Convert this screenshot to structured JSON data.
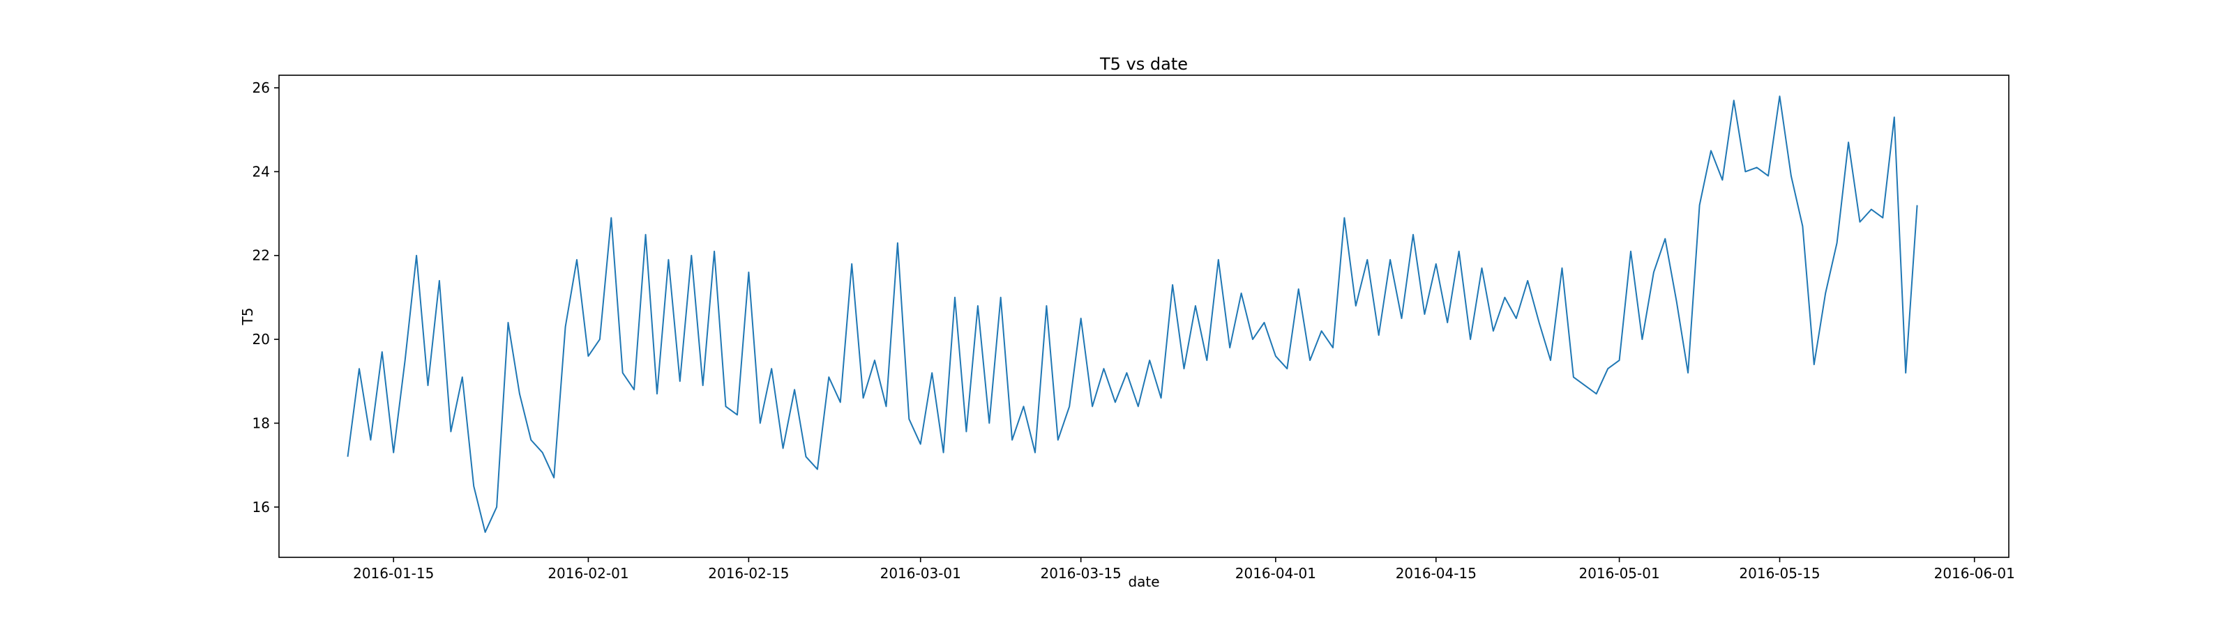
{
  "chart_data": {
    "type": "line",
    "title": "T5 vs date",
    "x_label": "date",
    "y_label": "T5",
    "color": "#1f77b4",
    "grid": false,
    "x": [
      "2016-01-11",
      "2016-01-12",
      "2016-01-13",
      "2016-01-14",
      "2016-01-15",
      "2016-01-16",
      "2016-01-17",
      "2016-01-18",
      "2016-01-19",
      "2016-01-20",
      "2016-01-21",
      "2016-01-22",
      "2016-01-23",
      "2016-01-24",
      "2016-01-25",
      "2016-01-26",
      "2016-01-27",
      "2016-01-28",
      "2016-01-29",
      "2016-01-30",
      "2016-01-31",
      "2016-02-01",
      "2016-02-02",
      "2016-02-03",
      "2016-02-04",
      "2016-02-05",
      "2016-02-06",
      "2016-02-07",
      "2016-02-08",
      "2016-02-09",
      "2016-02-10",
      "2016-02-11",
      "2016-02-12",
      "2016-02-13",
      "2016-02-14",
      "2016-02-15",
      "2016-02-16",
      "2016-02-17",
      "2016-02-18",
      "2016-02-19",
      "2016-02-20",
      "2016-02-21",
      "2016-02-22",
      "2016-02-23",
      "2016-02-24",
      "2016-02-25",
      "2016-02-26",
      "2016-02-27",
      "2016-02-28",
      "2016-02-29",
      "2016-03-01",
      "2016-03-02",
      "2016-03-03",
      "2016-03-04",
      "2016-03-05",
      "2016-03-06",
      "2016-03-07",
      "2016-03-08",
      "2016-03-09",
      "2016-03-10",
      "2016-03-11",
      "2016-03-12",
      "2016-03-13",
      "2016-03-14",
      "2016-03-15",
      "2016-03-16",
      "2016-03-17",
      "2016-03-18",
      "2016-03-19",
      "2016-03-20",
      "2016-03-21",
      "2016-03-22",
      "2016-03-23",
      "2016-03-24",
      "2016-03-25",
      "2016-03-26",
      "2016-03-27",
      "2016-03-28",
      "2016-03-29",
      "2016-03-30",
      "2016-03-31",
      "2016-04-01",
      "2016-04-02",
      "2016-04-03",
      "2016-04-04",
      "2016-04-05",
      "2016-04-06",
      "2016-04-07",
      "2016-04-08",
      "2016-04-09",
      "2016-04-10",
      "2016-04-11",
      "2016-04-12",
      "2016-04-13",
      "2016-04-14",
      "2016-04-15",
      "2016-04-16",
      "2016-04-17",
      "2016-04-18",
      "2016-04-19",
      "2016-04-20",
      "2016-04-21",
      "2016-04-22",
      "2016-04-23",
      "2016-04-24",
      "2016-04-25",
      "2016-04-26",
      "2016-04-27",
      "2016-04-28",
      "2016-04-29",
      "2016-04-30",
      "2016-05-01",
      "2016-05-02",
      "2016-05-03",
      "2016-05-04",
      "2016-05-05",
      "2016-05-06",
      "2016-05-07",
      "2016-05-08",
      "2016-05-09",
      "2016-05-10",
      "2016-05-11",
      "2016-05-12",
      "2016-05-13",
      "2016-05-14",
      "2016-05-15",
      "2016-05-16",
      "2016-05-17",
      "2016-05-18",
      "2016-05-19",
      "2016-05-20",
      "2016-05-21",
      "2016-05-22",
      "2016-05-23",
      "2016-05-24",
      "2016-05-25",
      "2016-05-26",
      "2016-05-27"
    ],
    "values": [
      17.2,
      19.3,
      17.6,
      19.7,
      17.3,
      19.5,
      22.0,
      18.9,
      21.4,
      17.8,
      19.1,
      16.5,
      15.4,
      16.0,
      20.4,
      18.7,
      17.6,
      17.3,
      16.7,
      20.3,
      21.9,
      19.6,
      20.0,
      22.9,
      19.2,
      18.8,
      22.5,
      18.7,
      21.9,
      19.0,
      22.0,
      18.9,
      22.1,
      18.4,
      18.2,
      21.6,
      18.0,
      19.3,
      17.4,
      18.8,
      17.2,
      16.9,
      19.1,
      18.5,
      21.8,
      18.6,
      19.5,
      18.4,
      22.3,
      18.1,
      17.5,
      19.2,
      17.3,
      21.0,
      17.8,
      20.8,
      18.0,
      21.0,
      17.6,
      18.4,
      17.3,
      20.8,
      17.6,
      18.4,
      20.5,
      18.4,
      19.3,
      18.5,
      19.2,
      18.4,
      19.5,
      18.6,
      21.3,
      19.3,
      20.8,
      19.5,
      21.9,
      19.8,
      21.1,
      20.0,
      20.4,
      19.6,
      19.3,
      21.2,
      19.5,
      20.2,
      19.8,
      22.9,
      20.8,
      21.9,
      20.1,
      21.9,
      20.5,
      22.5,
      20.6,
      21.8,
      20.4,
      22.1,
      20.0,
      21.7,
      20.2,
      21.0,
      20.5,
      21.4,
      20.4,
      19.5,
      21.7,
      19.1,
      18.9,
      18.7,
      19.3,
      19.5,
      22.1,
      20.0,
      21.6,
      22.4,
      20.9,
      19.2,
      23.2,
      24.5,
      23.8,
      25.7,
      24.0,
      24.1,
      23.9,
      25.8,
      23.9,
      22.7,
      19.4,
      21.1,
      22.3,
      24.7,
      22.8,
      23.1,
      22.9,
      25.3,
      19.2,
      23.2
    ],
    "xlim": [
      "2016-01-05",
      "2016-06-04"
    ],
    "xticks": [
      "2016-01-15",
      "2016-02-01",
      "2016-02-15",
      "2016-03-01",
      "2016-03-15",
      "2016-04-01",
      "2016-04-15",
      "2016-05-01",
      "2016-05-15",
      "2016-06-01"
    ],
    "ylim": [
      14.8,
      26.3
    ],
    "yticks": [
      16,
      18,
      20,
      22,
      24,
      26
    ]
  }
}
